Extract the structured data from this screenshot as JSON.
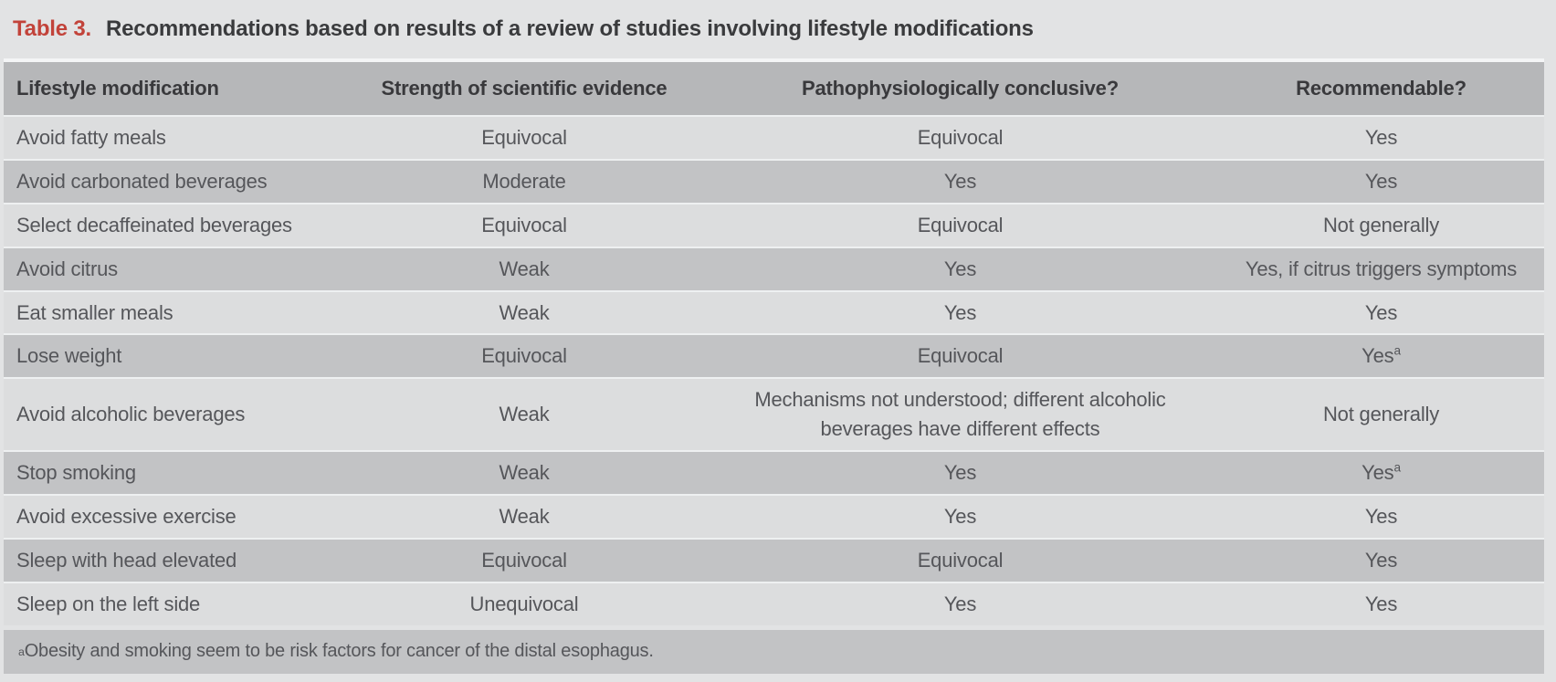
{
  "title": {
    "label": "Table 3.",
    "text": "Recommendations based on results of a review of studies involving lifestyle modifications"
  },
  "colors": {
    "accent_red": "#c2433a",
    "title_text": "#3a3b3d",
    "page_bg": "#e2e3e4",
    "header_bg": "#b6b7b9",
    "header_text": "#39393c",
    "row_light": "#dcddde",
    "row_dark": "#c2c3c5",
    "cell_text": "#55565a"
  },
  "table": {
    "columns": [
      "Lifestyle modification",
      "Strength of scientific evidence",
      "Pathophysiologically conclusive?",
      "Recommendable?"
    ],
    "rows": [
      [
        "Avoid fatty meals",
        "Equivocal",
        "Equivocal",
        "Yes"
      ],
      [
        "Avoid carbonated beverages",
        "Moderate",
        "Yes",
        "Yes"
      ],
      [
        "Select decaffeinated beverages",
        "Equivocal",
        "Equivocal",
        "Not generally"
      ],
      [
        "Avoid citrus",
        "Weak",
        "Yes",
        "Yes, if citrus triggers symptoms"
      ],
      [
        "Eat smaller meals",
        "Weak",
        "Yes",
        "Yes"
      ],
      [
        "Lose weight",
        "Equivocal",
        "Equivocal",
        "Yesᵃ"
      ],
      [
        "Avoid alcoholic beverages",
        "Weak",
        "Mechanisms not understood; different alcoholic beverages have different effects",
        "Not generally"
      ],
      [
        "Stop smoking",
        "Weak",
        "Yes",
        "Yesᵃ"
      ],
      [
        "Avoid excessive exercise",
        "Weak",
        "Yes",
        "Yes"
      ],
      [
        "Sleep with head elevated",
        "Equivocal",
        "Equivocal",
        "Yes"
      ],
      [
        "Sleep on the left side",
        "Unequivocal",
        "Yes",
        "Yes"
      ]
    ],
    "footnote": "ᵃObesity and smoking seem to be risk factors for cancer of the distal esophagus."
  }
}
